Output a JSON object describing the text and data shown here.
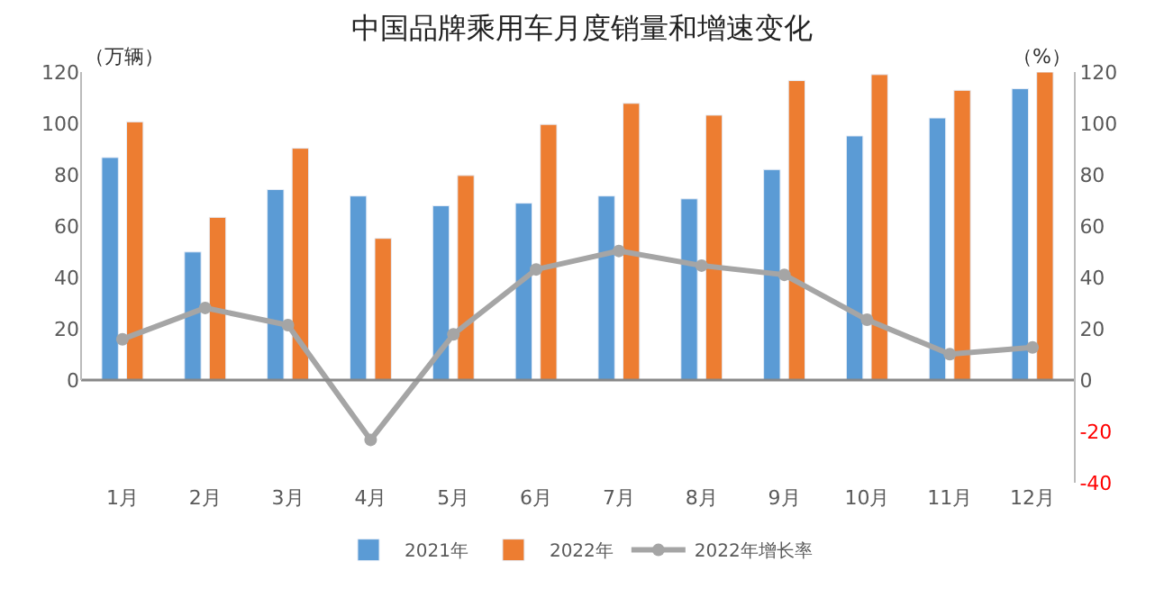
{
  "chart_data": {
    "type": "bar",
    "title": "中国品牌乘用车月度销量和增速变化",
    "ylabel": "（万辆）",
    "y2label": "（%）",
    "categories": [
      "1月",
      "2月",
      "3月",
      "4月",
      "5月",
      "6月",
      "7月",
      "8月",
      "9月",
      "10月",
      "11月",
      "12月"
    ],
    "series": [
      {
        "name": "2021年",
        "color": "#5b9bd5",
        "values": [
          86.7,
          49.9,
          74.2,
          71.7,
          67.9,
          68.9,
          71.7,
          70.6,
          82,
          95.1,
          102.1,
          113.5
        ]
      },
      {
        "name": "2022年",
        "color": "#ed7d31",
        "values": [
          100.6,
          63.4,
          90.3,
          55.2,
          79.7,
          99.6,
          107.8,
          103.2,
          116.7,
          119,
          112.9,
          120
        ]
      },
      {
        "name": "2022年增长率",
        "type": "line",
        "axis": "y2",
        "color": "#a5a5a5",
        "marker": "circle",
        "values": [
          15.9,
          28.1,
          21.4,
          -23.3,
          17.8,
          43.1,
          50.3,
          44.6,
          41,
          23.5,
          10.1,
          12.7
        ]
      }
    ],
    "ylim": [
      -40,
      120
    ],
    "yticks": [
      0,
      20,
      40,
      60,
      80,
      100,
      120
    ],
    "y2lim": [
      -40,
      120
    ],
    "y2ticks": [
      -40,
      -20,
      0,
      20,
      40,
      60,
      80,
      100,
      120
    ],
    "legend": "bottom"
  }
}
